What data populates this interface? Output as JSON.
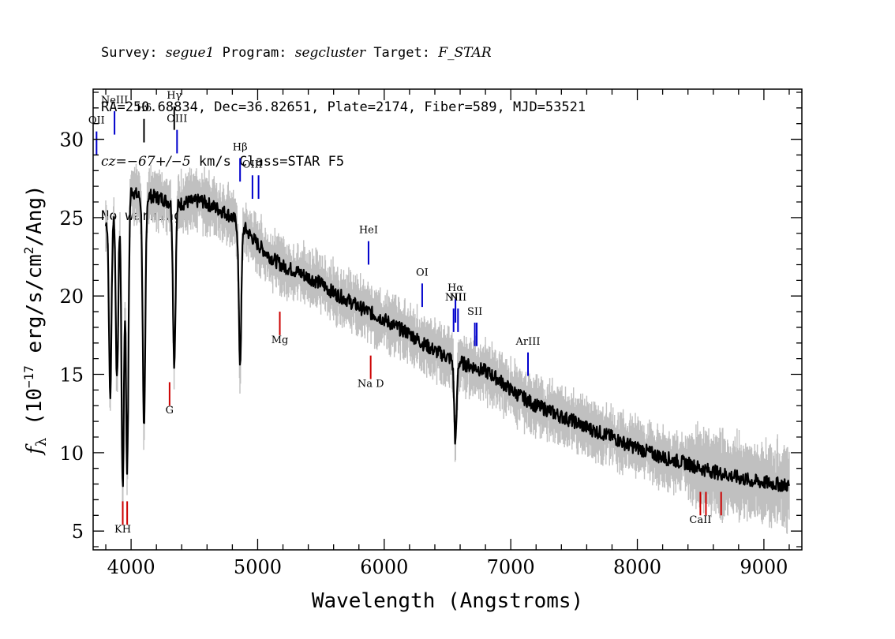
{
  "header": {
    "line1": {
      "survey_label": "Survey: ",
      "survey": "segue1",
      "program_label": " Program: ",
      "program": "segcluster",
      "target_label": " Target: ",
      "target": "F_STAR"
    },
    "line2": "RA=250.68834, Dec=36.82651, Plate=2174, Fiber=589, MJD=53521",
    "line3": {
      "cz": "cz=−67+/−5",
      "rest": " km/s Class=STAR F5"
    },
    "line4": "No warnings."
  },
  "chart_data": {
    "type": "line",
    "xlabel": "Wavelength (Angstroms)",
    "ylabel": "f_λ (10^-17 erg/s/cm^2/Ang)",
    "xlim": [
      3700,
      9300
    ],
    "ylim": [
      3.8,
      33.2
    ],
    "x_ticks": [
      4000,
      5000,
      6000,
      7000,
      8000,
      9000
    ],
    "x_tick_labels": [
      "4000",
      "5000",
      "6000",
      "7000",
      "8000",
      "9000"
    ],
    "y_ticks": [
      5,
      10,
      15,
      20,
      25,
      30
    ],
    "y_tick_labels": [
      "5",
      "10",
      "15",
      "20",
      "25",
      "30"
    ],
    "grid": false,
    "colors": {
      "spectrum": "#000000",
      "error": "#c0c0c0",
      "emission": "#0000cc",
      "absorption": "#cc0000",
      "other": "#000000"
    },
    "series": [
      {
        "x": [
          3800,
          3830,
          3860,
          3900,
          3950,
          4000,
          4050,
          4100,
          4150,
          4200,
          4250,
          4300,
          4350,
          4400,
          4450,
          4500,
          4550,
          4600,
          4650,
          4700,
          4750,
          4800,
          4850,
          4900,
          4950,
          5000,
          5050,
          5100,
          5150,
          5200,
          5300,
          5400,
          5500,
          5600,
          5700,
          5800,
          5900,
          6000,
          6100,
          6200,
          6300,
          6400,
          6500,
          6550,
          6600,
          6650,
          6700,
          6800,
          6900,
          7000,
          7100,
          7200,
          7300,
          7400,
          7500,
          7600,
          7700,
          7800,
          7900,
          8000,
          8100,
          8200,
          8300,
          8400,
          8500,
          8600,
          8700,
          8800,
          8900,
          9000,
          9100,
          9200
        ],
        "y": [
          24.5,
          26.0,
          25.5,
          26.3,
          26.6,
          26.8,
          26.4,
          26.2,
          26.4,
          26.3,
          26.2,
          26.0,
          25.8,
          25.9,
          26.0,
          26.0,
          26.1,
          25.9,
          25.7,
          25.5,
          25.3,
          25.0,
          24.6,
          24.3,
          23.8,
          23.3,
          22.9,
          22.5,
          22.2,
          21.9,
          21.6,
          21.2,
          20.8,
          20.2,
          19.8,
          19.3,
          18.9,
          18.5,
          18.0,
          17.6,
          17.0,
          16.5,
          16.1,
          15.9,
          15.8,
          15.6,
          15.5,
          15.2,
          14.7,
          14.0,
          13.5,
          13.0,
          12.7,
          12.3,
          12.0,
          11.6,
          11.3,
          11.0,
          10.6,
          10.3,
          10.0,
          9.7,
          9.5,
          9.3,
          9.0,
          8.8,
          8.6,
          8.4,
          8.2,
          8.1,
          8.0,
          7.9
        ]
      }
    ],
    "absorption_dips": [
      {
        "x": 3835,
        "y": 13.5
      },
      {
        "x": 3889,
        "y": 14.5
      },
      {
        "x": 3934,
        "y": 7.6
      },
      {
        "x": 3969,
        "y": 9.0
      },
      {
        "x": 4102,
        "y": 11.2
      },
      {
        "x": 4341,
        "y": 15.7
      },
      {
        "x": 4861,
        "y": 15.7
      },
      {
        "x": 6563,
        "y": 10.7
      }
    ],
    "emission_lines": [
      {
        "label": "OII",
        "x": 3727,
        "label_y": 31.0,
        "y0": 30.5,
        "y1": 29.0
      },
      {
        "label": "NeIII",
        "x": 3869,
        "label_y": 32.3,
        "y0": 31.8,
        "y1": 30.3
      },
      {
        "label": "OIII",
        "x": 4363,
        "label_y": 31.1,
        "y0": 30.6,
        "y1": 29.1
      },
      {
        "label": "Hβ",
        "x": 4861,
        "label_y": 29.3,
        "y0": 28.8,
        "y1": 27.3
      },
      {
        "label": "OIII",
        "x": 4959,
        "label_y": 28.2,
        "y0": null,
        "y1": null
      },
      {
        "label": "",
        "x": 4959,
        "label_y": null,
        "y0": 27.7,
        "y1": 26.2
      },
      {
        "label": "",
        "x": 5007,
        "label_y": null,
        "y0": 27.7,
        "y1": 26.2
      },
      {
        "label": "HeI",
        "x": 5876,
        "label_y": 24.0,
        "y0": 23.5,
        "y1": 22.0
      },
      {
        "label": "OI",
        "x": 6300,
        "label_y": 21.3,
        "y0": 20.8,
        "y1": 19.3
      },
      {
        "label": "NII",
        "x": 6548,
        "label_y": 19.7,
        "y0": 19.2,
        "y1": 17.7
      },
      {
        "label": "Hα",
        "x": 6563,
        "label_y": 20.3,
        "y0": 19.8,
        "y1": 18.3
      },
      {
        "label": "NII",
        "x": 6583,
        "label_y": 19.7,
        "y0": 19.2,
        "y1": 17.7
      },
      {
        "label": "SII",
        "x": 6716,
        "label_y": 18.8,
        "y0": 18.3,
        "y1": 16.8
      },
      {
        "label": "",
        "x": 6731,
        "label_y": null,
        "y0": 18.3,
        "y1": 16.8
      },
      {
        "label": "ArIII",
        "x": 7136,
        "label_y": 16.9,
        "y0": 16.4,
        "y1": 14.9
      }
    ],
    "absorption_lines": [
      {
        "label": "KH",
        "x": 3934,
        "label_y": 4.9,
        "y0": 5.4,
        "y1": 6.9
      },
      {
        "label": "",
        "x": 3969,
        "label_y": null,
        "y0": 5.4,
        "y1": 6.9
      },
      {
        "label": "G",
        "x": 4304,
        "label_y": 12.5,
        "y0": 13.0,
        "y1": 14.5
      },
      {
        "label": "Mg",
        "x": 5175,
        "label_y": 17.0,
        "y0": 17.5,
        "y1": 19.0
      },
      {
        "label": "Na D",
        "x": 5893,
        "label_y": 14.2,
        "y0": 14.7,
        "y1": 16.2
      },
      {
        "label": "CaII",
        "x": 8498,
        "label_y": 5.5,
        "y0": 6.0,
        "y1": 7.5
      },
      {
        "label": "",
        "x": 8542,
        "label_y": null,
        "y0": 6.0,
        "y1": 7.5
      },
      {
        "label": "",
        "x": 8662,
        "label_y": null,
        "y0": 6.0,
        "y1": 7.5
      }
    ],
    "other_lines": [
      {
        "label": "Hδ",
        "x": 4102,
        "label_y": 31.8,
        "y0": 31.3,
        "y1": 29.8
      },
      {
        "label": "Hγ",
        "x": 4341,
        "label_y": 32.6,
        "y0": 32.1,
        "y1": 30.6
      }
    ]
  }
}
